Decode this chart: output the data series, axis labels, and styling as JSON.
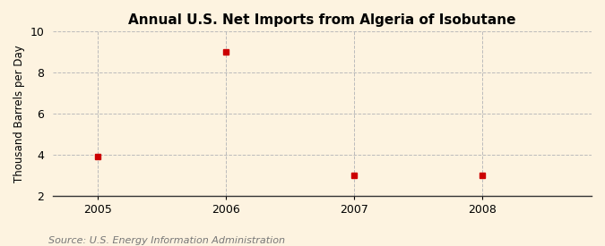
{
  "title": "Annual U.S. Net Imports from Algeria of Isobutane",
  "ylabel": "Thousand Barrels per Day",
  "source": "Source: U.S. Energy Information Administration",
  "x": [
    2005,
    2006,
    2007,
    2008
  ],
  "y": [
    3.9,
    9.0,
    3.0,
    3.0
  ],
  "ylim": [
    2,
    10
  ],
  "yticks": [
    2,
    4,
    6,
    8,
    10
  ],
  "xlim": [
    2004.65,
    2008.85
  ],
  "xticks": [
    2005,
    2006,
    2007,
    2008
  ],
  "marker_color": "#cc0000",
  "marker": "s",
  "marker_size": 4,
  "bg_color": "#fdf3e0",
  "grid_color": "#bbbbbb",
  "grid_style": "--",
  "title_fontsize": 11,
  "label_fontsize": 8.5,
  "tick_fontsize": 9,
  "source_fontsize": 8
}
